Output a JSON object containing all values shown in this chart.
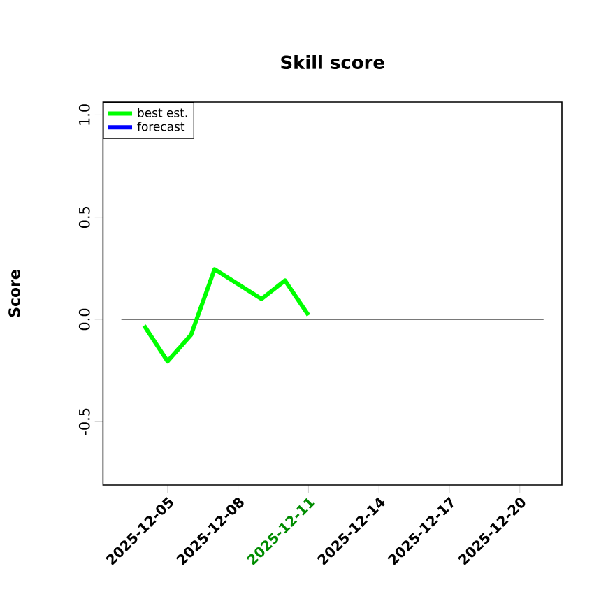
{
  "chart_data": {
    "type": "line",
    "title": "Skill score",
    "ylabel": "Score",
    "xlim": [
      "2025-12-02T06:00",
      "2025-12-21T19:00"
    ],
    "ylim": [
      -0.81,
      1.063
    ],
    "xticks": [
      "2025-12-05",
      "2025-12-08",
      "2025-12-11",
      "2025-12-14",
      "2025-12-17",
      "2025-12-20"
    ],
    "yticks": [
      -0.5,
      {
        "value": 0,
        "label": "0.0"
      },
      0.5,
      {
        "value": 1,
        "label": "1.0"
      }
    ],
    "series": [
      {
        "name": "best est.",
        "color": "#00ff00",
        "x": [
          "2025-12-04",
          "2025-12-05",
          "2025-12-06",
          "2025-12-07",
          "2025-12-09",
          "2025-12-10",
          "2025-12-11"
        ],
        "values": [
          -0.03,
          -0.205,
          -0.075,
          0.245,
          0.1,
          0.19,
          0.02
        ]
      },
      {
        "name": "forecast",
        "color": "#0000ff"
      }
    ],
    "ref_lines": [
      {
        "axis": "y",
        "value": 0,
        "color": "#4d4d4d"
      }
    ],
    "legend": "top left",
    "grid": false,
    "marker": "none",
    "line_style": "solid"
  }
}
